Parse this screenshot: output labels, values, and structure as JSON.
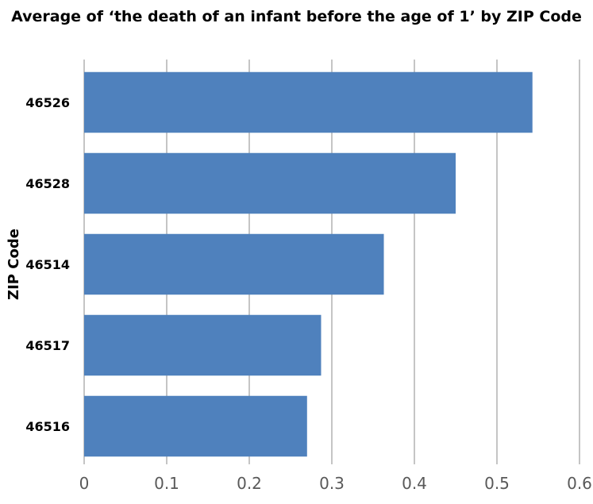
{
  "chart_data": {
    "type": "bar",
    "orientation": "horizontal",
    "title": "Average of ‘the death of an infant before the age of 1’ by ZIP Code",
    "xlabel": "",
    "ylabel": "ZIP Code",
    "categories": [
      "46526",
      "46528",
      "46514",
      "46517",
      "46516"
    ],
    "values": [
      0.543,
      0.45,
      0.363,
      0.287,
      0.27
    ],
    "xlim": [
      0,
      0.6
    ],
    "xticks": [
      "0",
      "0.1",
      "0.2",
      "0.3",
      "0.4",
      "0.5",
      "0.6"
    ],
    "grid": "vertical",
    "legend": "none",
    "colors": {
      "bar": "#4F81BD",
      "gridline": "#A6A6A6",
      "tick_text": "#595959"
    }
  }
}
